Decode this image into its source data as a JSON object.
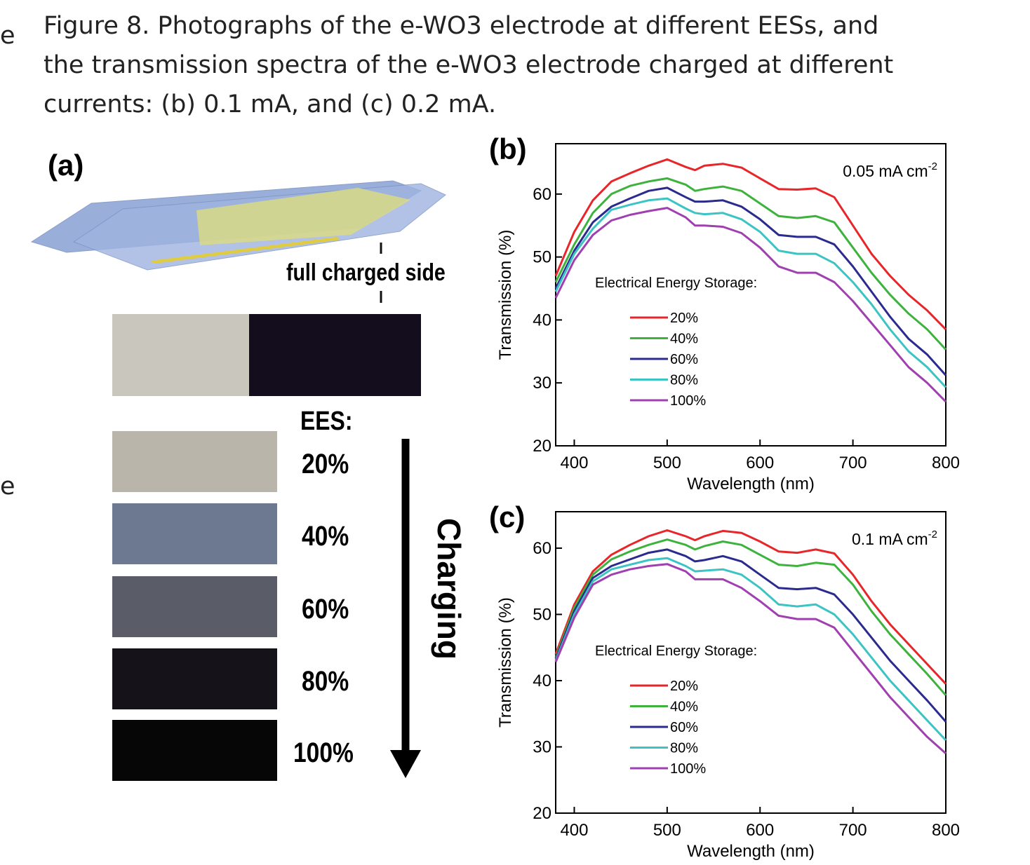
{
  "caption": [
    "Figure 8. Photographs of the e-WO3 electrode at different EESs, and",
    "the transmission spectra of the e-WO3 electrode charged at different",
    "currents: (b) 0.1 mA, and (c) 0.2 mA."
  ],
  "margin_fragments": [
    "e",
    "e"
  ],
  "panel_a": {
    "label": "(a)",
    "annotation": "full charged side",
    "ees_label": "EES:",
    "levels": [
      "20%",
      "40%",
      "60%",
      "80%",
      "100%"
    ],
    "arrow_label": "Charging"
  },
  "chart_data": [
    {
      "type": "line",
      "panel_label": "(b)",
      "condition": "0.05 mA cm",
      "condition_sup": "-2",
      "x_label": "Wavelength (nm)",
      "y_label": "Transmission (%)",
      "legend_title": "Electrical Energy Storage:",
      "x": [
        380,
        400,
        420,
        440,
        460,
        480,
        500,
        520,
        530,
        540,
        560,
        580,
        600,
        620,
        640,
        660,
        680,
        700,
        720,
        740,
        760,
        780,
        800
      ],
      "xlim": [
        380,
        800
      ],
      "xticks": [
        400,
        500,
        600,
        700,
        800
      ],
      "ylim": [
        20,
        68
      ],
      "yticks": [
        20,
        30,
        40,
        50,
        60
      ],
      "series": [
        {
          "name": "20%",
          "color": "#e8262a",
          "values": [
            47,
            54,
            59,
            62,
            63.3,
            64.5,
            65.5,
            64.3,
            63.8,
            64.5,
            64.8,
            64.2,
            62.5,
            60.8,
            60.7,
            60.9,
            59.5,
            55,
            50.5,
            47,
            44,
            41.5,
            38.5
          ]
        },
        {
          "name": "40%",
          "color": "#3db33d",
          "values": [
            46,
            52,
            57,
            60,
            61.3,
            62,
            62.5,
            61.5,
            60.5,
            60.8,
            61.2,
            60.5,
            58.5,
            56.5,
            56.2,
            56.5,
            55.5,
            51.5,
            47.5,
            44,
            41,
            38.5,
            35.3
          ]
        },
        {
          "name": "60%",
          "color": "#2b2b8f",
          "values": [
            45,
            51,
            55.5,
            58,
            59.3,
            60.5,
            61,
            59.5,
            58.8,
            58.8,
            59,
            58,
            56,
            53.5,
            53.2,
            53.2,
            52,
            48.5,
            44.5,
            40.5,
            37,
            34.5,
            31.2
          ]
        },
        {
          "name": "80%",
          "color": "#3cc4c4",
          "values": [
            44.5,
            50.5,
            54.5,
            57.5,
            58.3,
            59,
            59.3,
            57.7,
            57,
            56.8,
            57,
            56,
            54,
            51,
            50.5,
            50.5,
            49,
            46,
            42.5,
            38.5,
            35,
            32.5,
            29.3
          ]
        },
        {
          "name": "100%",
          "color": "#a040b0",
          "values": [
            43.5,
            49.5,
            53.5,
            55.8,
            56.7,
            57.3,
            57.8,
            56.3,
            55,
            55,
            54.8,
            53.8,
            51.5,
            48.5,
            47.5,
            47.5,
            46,
            43,
            39.5,
            36,
            32.5,
            30,
            27
          ]
        }
      ]
    },
    {
      "type": "line",
      "panel_label": "(c)",
      "condition": "0.1 mA cm",
      "condition_sup": "-2",
      "x_label": "Wavelength (nm)",
      "y_label": "Transmission (%)",
      "legend_title": "Electrical Energy Storage:",
      "x": [
        380,
        400,
        420,
        440,
        460,
        480,
        500,
        520,
        530,
        540,
        560,
        580,
        600,
        620,
        640,
        660,
        680,
        700,
        720,
        740,
        760,
        780,
        800
      ],
      "xlim": [
        380,
        800
      ],
      "xticks": [
        400,
        500,
        600,
        700,
        800
      ],
      "ylim": [
        20,
        65.5
      ],
      "yticks": [
        20,
        30,
        40,
        50,
        60
      ],
      "series": [
        {
          "name": "20%",
          "color": "#e8262a",
          "values": [
            44,
            51.5,
            56.5,
            59,
            60.5,
            61.8,
            62.7,
            61.8,
            61.2,
            61.8,
            62.6,
            62.3,
            61,
            59.5,
            59.3,
            59.8,
            59.2,
            56,
            52,
            48.5,
            45.5,
            42.5,
            39.5
          ]
        },
        {
          "name": "40%",
          "color": "#3db33d",
          "values": [
            43.5,
            51,
            56,
            58.3,
            59.5,
            60.5,
            61.3,
            60.5,
            59.8,
            60.3,
            61,
            60.5,
            59,
            57.5,
            57.3,
            57.8,
            57.5,
            54.5,
            50.5,
            47,
            44,
            41,
            37.8
          ]
        },
        {
          "name": "60%",
          "color": "#2b2b8f",
          "values": [
            43.3,
            50.5,
            55.5,
            57.3,
            58.3,
            59.3,
            59.8,
            58.8,
            58,
            58.2,
            58.8,
            58,
            56,
            54,
            53.8,
            54,
            53,
            50,
            46.5,
            43,
            40,
            37,
            33.8
          ]
        },
        {
          "name": "80%",
          "color": "#3cc4c4",
          "values": [
            43,
            50,
            55,
            56.8,
            57.5,
            58.2,
            58.5,
            57.3,
            56.5,
            56.6,
            56.8,
            56,
            54,
            51.5,
            51.2,
            51.5,
            50,
            47,
            43.5,
            40,
            37,
            34,
            31
          ]
        },
        {
          "name": "100%",
          "color": "#a040b0",
          "values": [
            42.8,
            49.5,
            54.5,
            56,
            56.8,
            57.3,
            57.6,
            56.5,
            55.3,
            55.3,
            55.3,
            54,
            52,
            49.8,
            49.3,
            49.3,
            48,
            44.5,
            41,
            37.5,
            34.5,
            31.5,
            29
          ]
        }
      ]
    }
  ]
}
